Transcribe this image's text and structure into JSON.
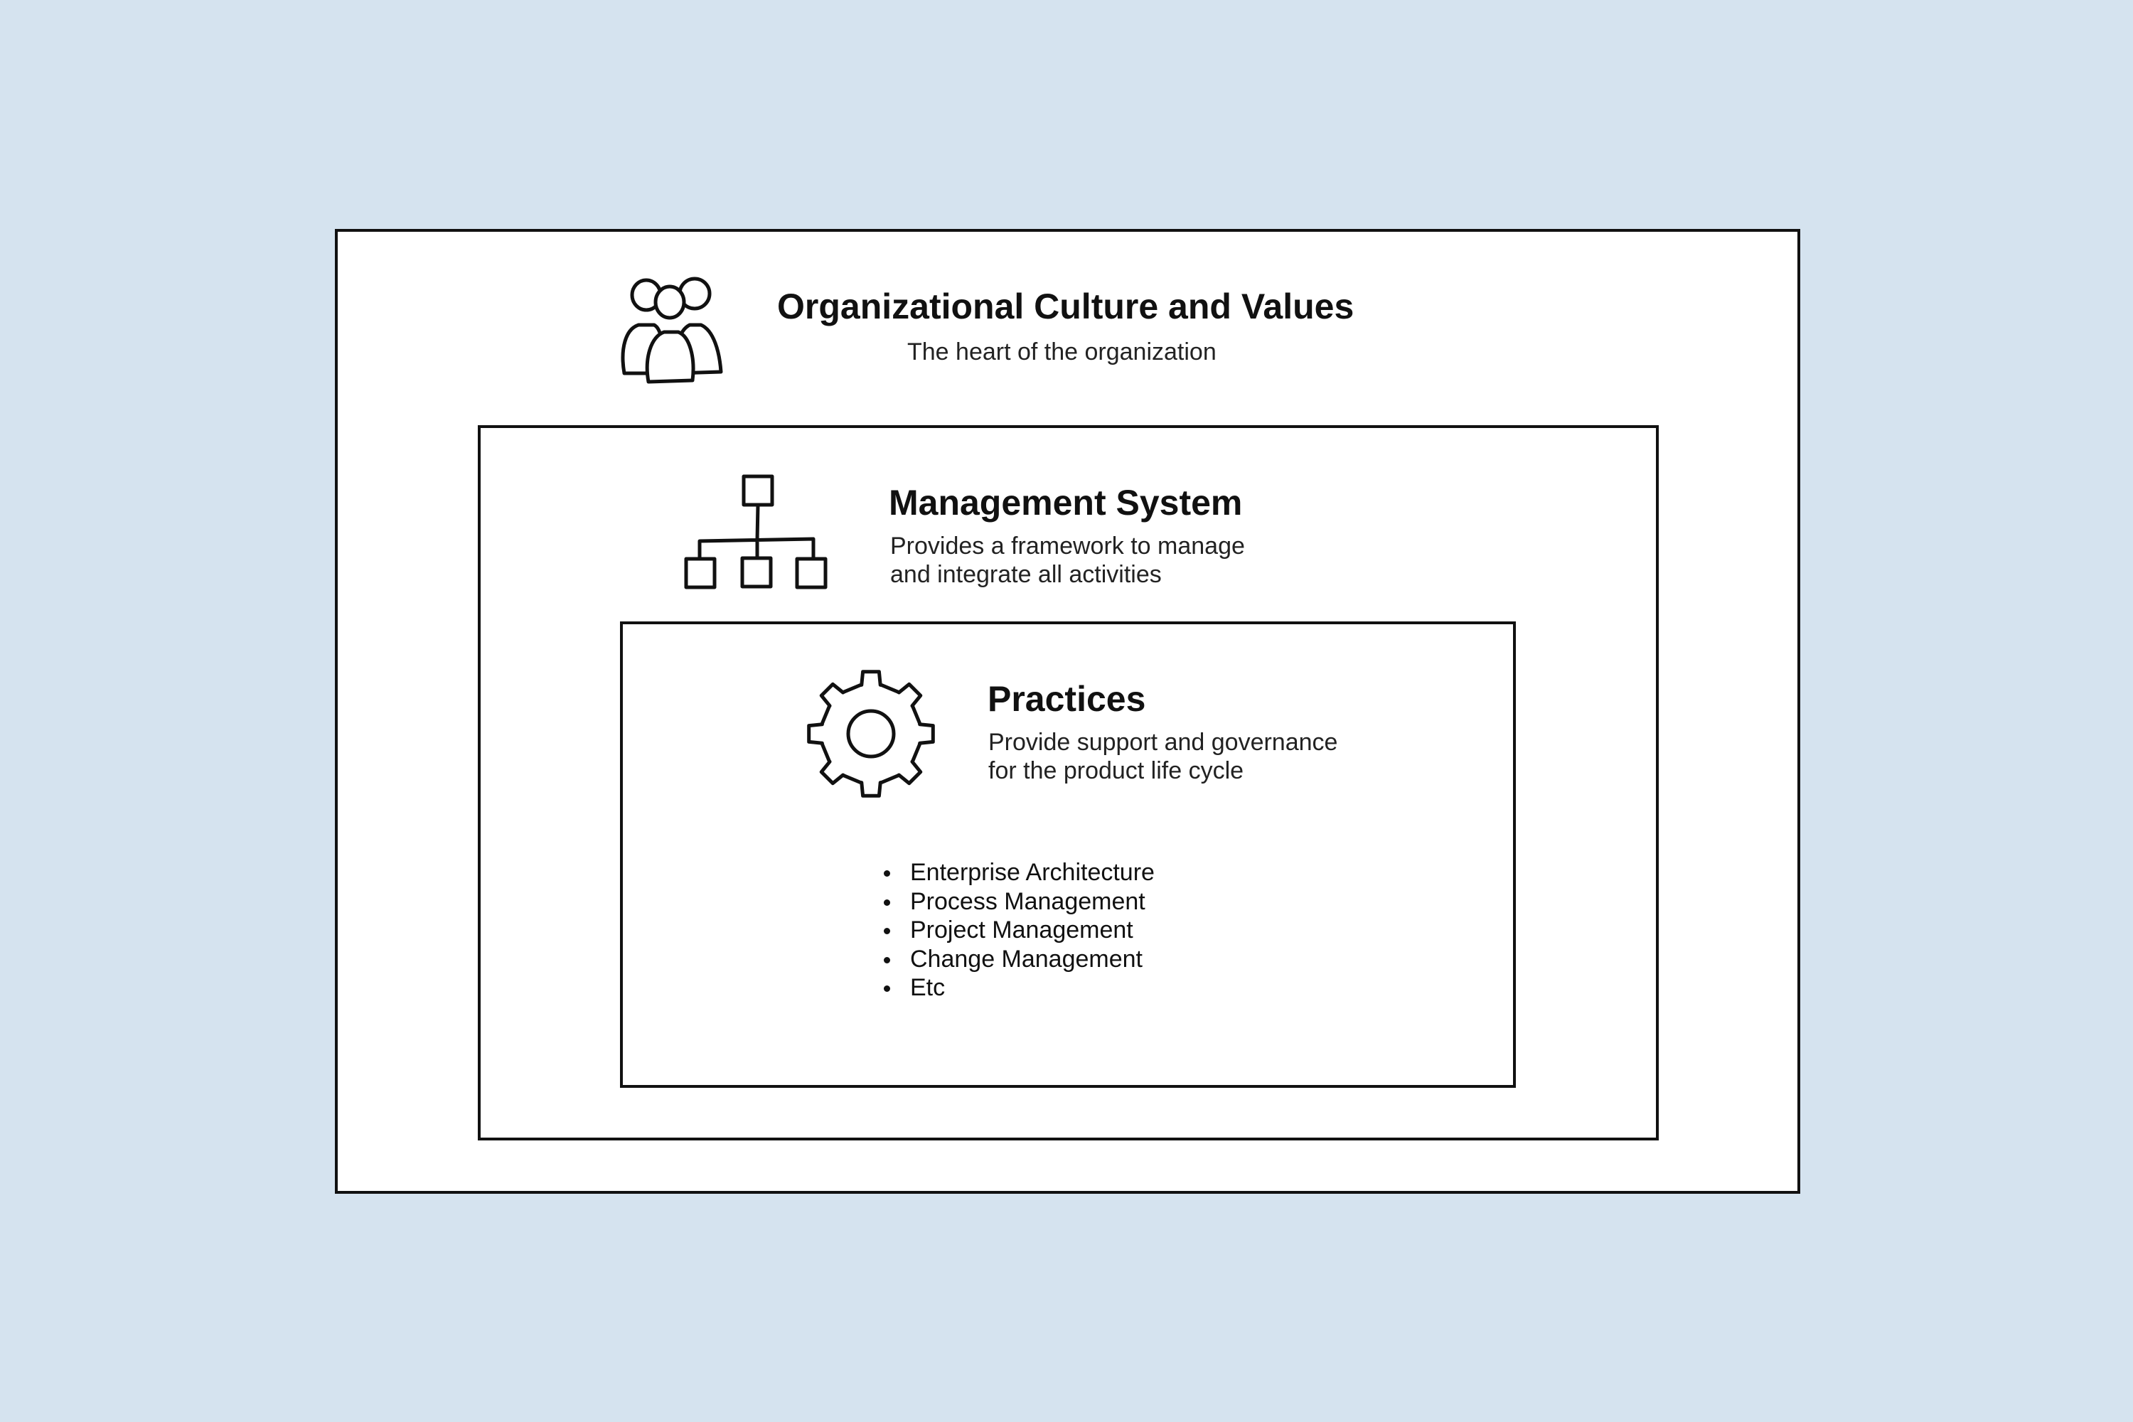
{
  "layers": [
    {
      "title": "Organizational Culture and Values",
      "description": "The heart of the organization",
      "icon": "people-group-icon"
    },
    {
      "title": "Management System",
      "description": "Provides a framework to manage\nand integrate all activities",
      "icon": "org-chart-icon"
    },
    {
      "title": "Practices",
      "description": "Provide support and governance\nfor the product life cycle",
      "icon": "gear-icon",
      "items": [
        "Enterprise Architecture",
        "Process Management",
        "Project Management",
        "Change Management",
        "Etc"
      ]
    }
  ],
  "colors": {
    "background": "#d5e3ef",
    "box_fill": "#ffffff",
    "stroke": "#111111"
  }
}
